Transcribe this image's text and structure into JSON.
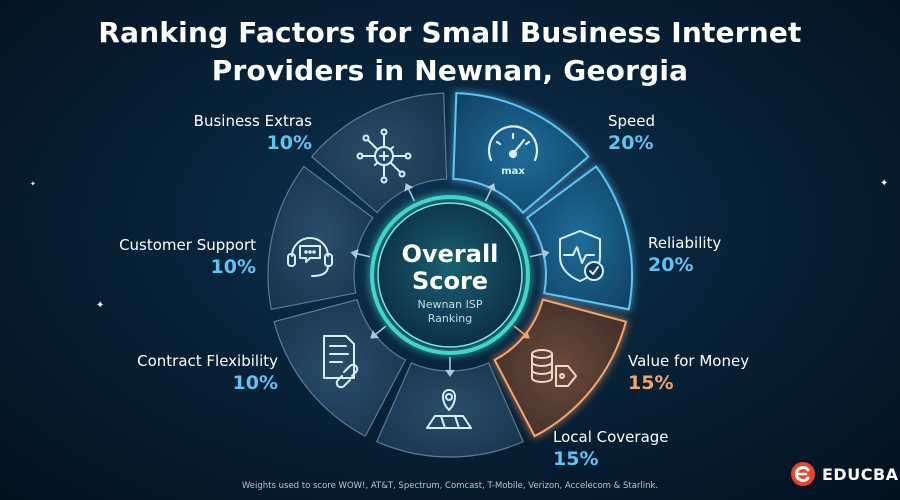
{
  "title": {
    "line1": "Ranking Factors for Small Business Internet",
    "line2": "Providers in Newnan, Georgia"
  },
  "center": {
    "title_line1": "Overall",
    "title_line2": "Score",
    "subtitle_line1": "Newnan ISP",
    "subtitle_line2": "Ranking"
  },
  "factors": [
    {
      "name": "Speed",
      "weight": "20%",
      "icon": "speedometer-icon",
      "icon_text": "max",
      "accent": "#5ec4f4",
      "highlight": true
    },
    {
      "name": "Reliability",
      "weight": "20%",
      "icon": "shield-check-icon",
      "accent": "#5ec4f4",
      "highlight": true
    },
    {
      "name": "Value for Money",
      "weight": "15%",
      "icon": "coins-tag-icon",
      "accent": "#f5a36a",
      "highlight": true
    },
    {
      "name": "Local Coverage",
      "weight": "15%",
      "icon": "map-pin-icon",
      "accent": "#5ec4f4",
      "highlight": false
    },
    {
      "name": "Contract Flexibility",
      "weight": "10%",
      "icon": "contract-link-icon",
      "accent": "#5ec4f4",
      "highlight": false
    },
    {
      "name": "Customer Support",
      "weight": "10%",
      "icon": "headset-chat-icon",
      "accent": "#5ec4f4",
      "highlight": false
    },
    {
      "name": "Business Extras",
      "weight": "10%",
      "icon": "gear-network-icon",
      "accent": "#5ec4f4",
      "highlight": false
    }
  ],
  "footnote": "Weights used to score WOW!, AT&T, Spectrum, Comcast, T-Mobile, Verizon, Accelecom & Starlink.",
  "brand": {
    "name": "EDUCBA",
    "color": "#e8452c"
  }
}
